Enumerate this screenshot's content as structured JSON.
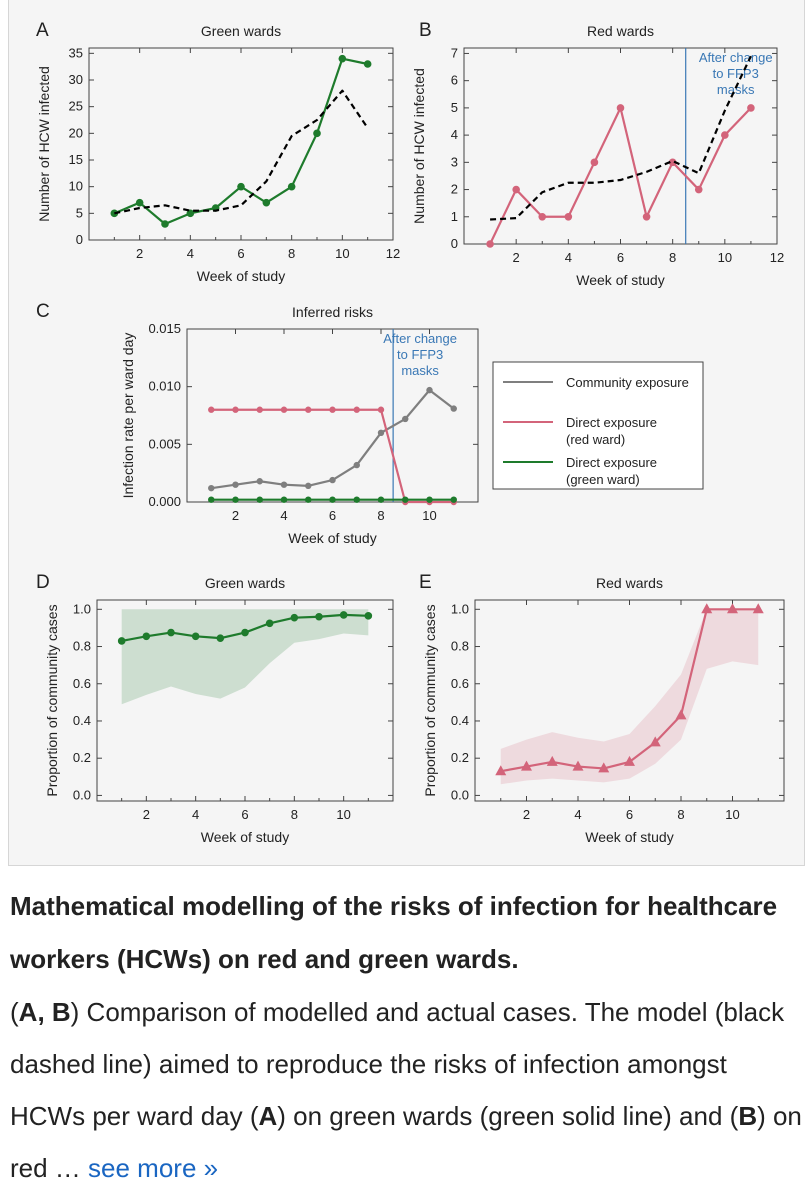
{
  "figure": {
    "chart_data": [
      {
        "id": "A",
        "type": "line",
        "title": "Green wards",
        "xlabel": "Week of study",
        "ylabel": "Number of HCW infected",
        "xlim": [
          0,
          12
        ],
        "ylim": [
          0,
          36
        ],
        "xticks": [
          2,
          4,
          6,
          8,
          10,
          12
        ],
        "yticks": [
          0,
          5,
          10,
          15,
          20,
          25,
          30,
          35
        ],
        "series": [
          {
            "name": "Actual cases",
            "style": "solid",
            "color": "#1e7b2c",
            "markers": "circle",
            "x": [
              1,
              2,
              3,
              4,
              5,
              6,
              7,
              8,
              9,
              10,
              11
            ],
            "values": [
              5,
              7,
              3,
              5,
              6,
              10,
              7,
              10,
              20,
              34,
              33
            ]
          },
          {
            "name": "Model",
            "style": "dashed",
            "color": "#000000",
            "x": [
              1,
              2,
              3,
              4,
              5,
              6,
              7,
              8,
              9,
              10,
              11
            ],
            "values": [
              5,
              6,
              6.5,
              5.5,
              5.5,
              6.5,
              11,
              19.5,
              22.5,
              28,
              21
            ]
          }
        ]
      },
      {
        "id": "B",
        "type": "line",
        "title": "Red wards",
        "xlabel": "Week of study",
        "ylabel": "Number of HCW infected",
        "xlim": [
          0,
          12
        ],
        "ylim": [
          0,
          7.2
        ],
        "xticks": [
          2,
          4,
          6,
          8,
          10,
          12
        ],
        "yticks": [
          0,
          1,
          2,
          3,
          4,
          5,
          6,
          7
        ],
        "vline": 8.5,
        "annotation": [
          "After change",
          "to FFP3",
          "masks"
        ],
        "series": [
          {
            "name": "Actual cases",
            "style": "solid",
            "color": "#d3647a",
            "markers": "circle",
            "x": [
              1,
              2,
              3,
              4,
              5,
              6,
              7,
              8,
              9,
              10,
              11
            ],
            "values": [
              0,
              2,
              1,
              1,
              3,
              5,
              1,
              3,
              2,
              4,
              5
            ]
          },
          {
            "name": "Model",
            "style": "dashed",
            "color": "#000000",
            "x": [
              1,
              2,
              3,
              4,
              5,
              6,
              7,
              8,
              9,
              10,
              11
            ],
            "values": [
              0.9,
              0.95,
              1.9,
              2.25,
              2.25,
              2.35,
              2.65,
              3.05,
              2.6,
              4.9,
              6.9
            ]
          }
        ]
      },
      {
        "id": "C",
        "type": "line",
        "title": "Inferred risks",
        "xlabel": "Week of study",
        "ylabel": "Infection rate per ward day",
        "xlim": [
          0,
          12
        ],
        "ylim": [
          0,
          0.015
        ],
        "xticks": [
          2,
          4,
          6,
          8,
          10
        ],
        "yticks": [
          0,
          0.005,
          0.01,
          0.015
        ],
        "ytick_labels": [
          "0.000",
          "0.005",
          "0.010",
          "0.015"
        ],
        "vline": 8.5,
        "annotation": [
          "After change",
          "to FFP3",
          "masks"
        ],
        "legend": "right",
        "series": [
          {
            "name": "Community exposure",
            "color": "#7f7f7f",
            "x": [
              1,
              2,
              3,
              4,
              5,
              6,
              7,
              8,
              9,
              10,
              11
            ],
            "values": [
              0.0012,
              0.0015,
              0.0018,
              0.0015,
              0.0014,
              0.0019,
              0.0032,
              0.006,
              0.0072,
              0.0097,
              0.0081
            ]
          },
          {
            "name": "Direct exposure (red ward)",
            "color": "#d3647a",
            "x": [
              1,
              2,
              3,
              4,
              5,
              6,
              7,
              8,
              9,
              10,
              11
            ],
            "values": [
              0.008,
              0.008,
              0.008,
              0.008,
              0.008,
              0.008,
              0.008,
              0.008,
              0,
              0,
              0
            ]
          },
          {
            "name": "Direct exposure (green ward)",
            "color": "#1e7b2c",
            "x": [
              1,
              2,
              3,
              4,
              5,
              6,
              7,
              8,
              9,
              10,
              11
            ],
            "values": [
              0.0002,
              0.0002,
              0.0002,
              0.0002,
              0.0002,
              0.0002,
              0.0002,
              0.0002,
              0.0002,
              0.0002,
              0.0002
            ]
          }
        ],
        "legend_entries": [
          {
            "line1": "Community exposure",
            "line2": ""
          },
          {
            "line1": "Direct exposure",
            "line2": "(red ward)"
          },
          {
            "line1": "Direct exposure",
            "line2": "(green ward)"
          }
        ]
      },
      {
        "id": "D",
        "type": "area",
        "title": "Green wards",
        "xlabel": "Week of study",
        "ylabel": "Proportion of community cases",
        "xlim": [
          0,
          12
        ],
        "ylim": [
          -0.03,
          1.05
        ],
        "xticks": [
          2,
          4,
          6,
          8,
          10
        ],
        "yticks": [
          0,
          0.2,
          0.4,
          0.6,
          0.8,
          1
        ],
        "ytick_labels": [
          "0.0",
          "0.2",
          "0.4",
          "0.6",
          "0.8",
          "1.0"
        ],
        "series": [
          {
            "name": "Proportion",
            "color": "#1e7b2c",
            "markers": "circle",
            "x": [
              1,
              2,
              3,
              4,
              5,
              6,
              7,
              8,
              9,
              10,
              11
            ],
            "values": [
              0.83,
              0.855,
              0.875,
              0.855,
              0.845,
              0.875,
              0.925,
              0.955,
              0.96,
              0.97,
              0.965
            ],
            "band_lower": [
              0.49,
              0.54,
              0.585,
              0.545,
              0.52,
              0.58,
              0.71,
              0.82,
              0.84,
              0.87,
              0.86
            ],
            "band_upper": [
              1,
              1,
              1,
              1,
              1,
              1,
              1,
              1,
              1,
              1,
              1
            ]
          }
        ]
      },
      {
        "id": "E",
        "type": "area",
        "title": "Red wards",
        "xlabel": "Week of study",
        "ylabel": "Proportion of community cases",
        "xlim": [
          0,
          12
        ],
        "ylim": [
          -0.03,
          1.05
        ],
        "xticks": [
          2,
          4,
          6,
          8,
          10
        ],
        "yticks": [
          0,
          0.2,
          0.4,
          0.6,
          0.8,
          1
        ],
        "ytick_labels": [
          "0.0",
          "0.2",
          "0.4",
          "0.6",
          "0.8",
          "1.0"
        ],
        "series": [
          {
            "name": "Proportion",
            "color": "#d3647a",
            "markers": "triangle",
            "x": [
              1,
              2,
              3,
              4,
              5,
              6,
              7,
              8,
              9,
              10,
              11
            ],
            "values": [
              0.13,
              0.155,
              0.18,
              0.155,
              0.145,
              0.18,
              0.285,
              0.43,
              1,
              1,
              1
            ],
            "band_lower": [
              0.06,
              0.08,
              0.09,
              0.08,
              0.07,
              0.09,
              0.17,
              0.3,
              0.68,
              0.72,
              0.7
            ],
            "band_upper": [
              0.25,
              0.3,
              0.34,
              0.31,
              0.29,
              0.33,
              0.48,
              0.65,
              1,
              1,
              1
            ]
          }
        ]
      }
    ]
  },
  "caption": {
    "title": "Mathematical modelling of the risks of infection for healthcare workers (HCWs) on red and green wards.",
    "body_parts": [
      {
        "text": "(",
        "bold": false
      },
      {
        "text": "A, B",
        "bold": true
      },
      {
        "text": ") Comparison of modelled and actual cases. The model (black dashed line) aimed to reproduce the risks of infection amongst HCWs per ward day (",
        "bold": false
      },
      {
        "text": "A",
        "bold": true
      },
      {
        "text": ") on green wards (green solid line) and (",
        "bold": false
      },
      {
        "text": "B",
        "bold": true
      },
      {
        "text": ") on red … ",
        "bold": false
      }
    ],
    "see_more": "see more »"
  },
  "colors": {
    "green": "#1e7b2c",
    "red": "#d3647a",
    "gray": "#7f7f7f",
    "note": "#3a78b5"
  }
}
